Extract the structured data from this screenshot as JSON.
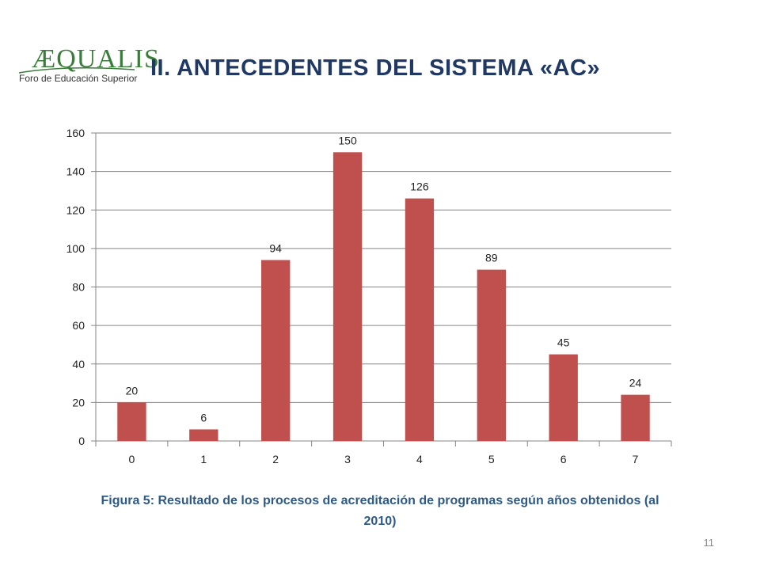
{
  "logo": {
    "mark": "ÆQUALIS",
    "subtitle": "Foro de Educación Superior"
  },
  "slide": {
    "title": "II. ANTECEDENTES DEL SISTEMA «AC»",
    "caption": "Figura 5: Resultado de los procesos de acreditación de programas según años obtenidos (al 2010)",
    "page_number": "11"
  },
  "colors": {
    "bar": "#c0504d",
    "grid": "#868686",
    "title": "#1f3864",
    "caption": "#2e5a87",
    "logo": "#3a7d3a"
  },
  "chart_data": {
    "type": "bar",
    "categories": [
      "0",
      "1",
      "2",
      "3",
      "4",
      "5",
      "6",
      "7"
    ],
    "values": [
      20,
      6,
      94,
      150,
      126,
      89,
      45,
      24
    ],
    "data_labels": [
      "20",
      "6",
      "94",
      "150",
      "126",
      "89",
      "45",
      "24"
    ],
    "title": "",
    "xlabel": "",
    "ylabel": "",
    "ylim": [
      0,
      160
    ],
    "yticks": [
      "0",
      "20",
      "40",
      "60",
      "80",
      "100",
      "120",
      "140",
      "160"
    ],
    "grid": true,
    "legend": "none"
  }
}
